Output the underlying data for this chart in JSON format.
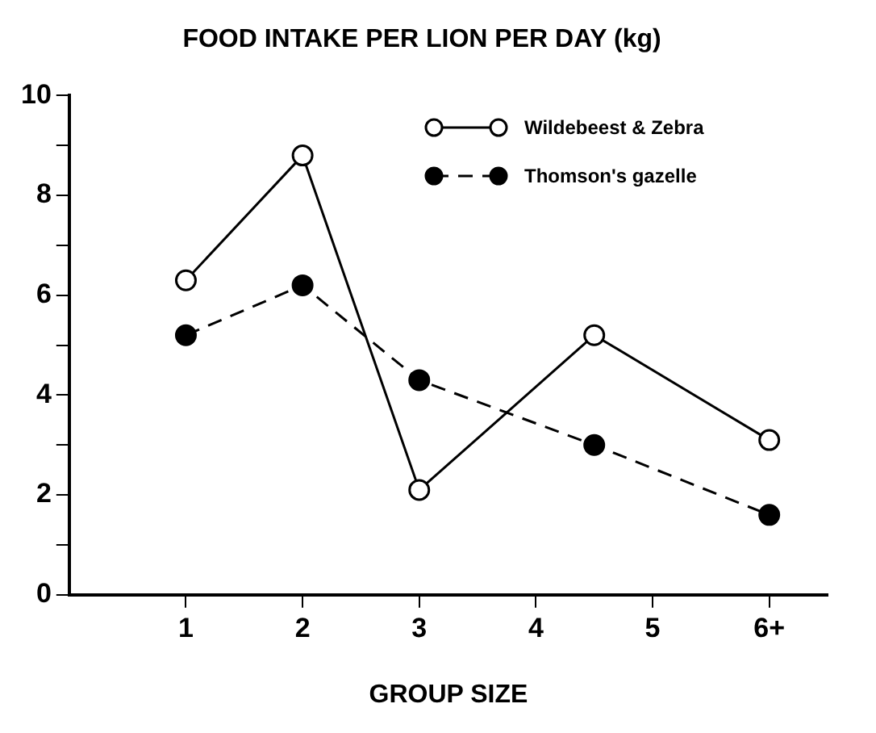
{
  "chart_data": {
    "type": "line",
    "title": "FOOD INTAKE PER LION PER DAY (kg)",
    "xlabel": "GROUP SIZE",
    "x": [
      1,
      2,
      3,
      4.5,
      6
    ],
    "series": [
      {
        "name": "Wildebeest & Zebra",
        "color": "#000000",
        "values": [
          6.3,
          8.8,
          2.1,
          5.2,
          3.1
        ],
        "marker": "circle_open",
        "line_style": "solid"
      },
      {
        "name": "Thomson's gazelle",
        "color": "#000000",
        "values": [
          5.2,
          6.2,
          4.3,
          3.0,
          1.6
        ],
        "marker": "circle",
        "line_style": "dashed"
      }
    ],
    "xlim": [
      0,
      6.5
    ],
    "xticks": [
      1,
      2,
      3,
      4,
      5,
      {
        "value": 6,
        "label": "6+"
      }
    ],
    "ylim": [
      0,
      10
    ],
    "yticks": [
      0,
      {
        "value": 1,
        "label": null
      },
      2,
      {
        "value": 3,
        "label": null
      },
      4,
      {
        "value": 5,
        "label": null
      },
      6,
      {
        "value": 7,
        "label": null
      },
      8,
      {
        "value": 9,
        "label": null
      },
      10
    ],
    "grid": false,
    "legend": "top right"
  }
}
